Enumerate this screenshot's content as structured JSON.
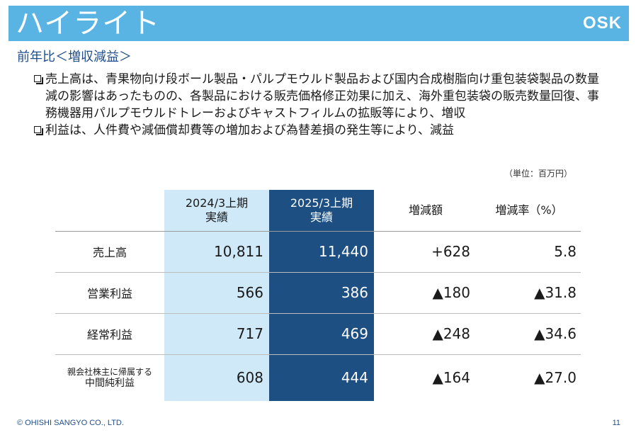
{
  "header": {
    "title": "ハイライト",
    "logo": "OSK"
  },
  "subtitle": "前年比＜増収減益＞",
  "bullets": [
    "売上高は、青果物向け段ボール製品・パルプモウルド製品および国内合成樹脂向け重包装袋製品の数量減の影響はあったものの、各製品における販売価格修正効果に加え、海外重包装袋の販売数量回復、事務機器用パルプモウルドトレーおよびキャストフィルムの拡販等により、増収",
    "利益は、人件費や減価償却費等の増加および為替差損の発生等により、減益"
  ],
  "unit_note": "（単位：百万円）",
  "table": {
    "headers": {
      "prev_line1": "2024/3上期",
      "prev_line2": "実績",
      "curr_line1": "2025/3上期",
      "curr_line2": "実績",
      "change": "増減額",
      "rate": "増減率（%）"
    },
    "rows": [
      {
        "label": "売上高",
        "prev": "10,811",
        "curr": "11,440",
        "change": "+628",
        "rate": "5.8"
      },
      {
        "label": "営業利益",
        "prev": "566",
        "curr": "386",
        "change": "▲180",
        "rate": "▲31.8"
      },
      {
        "label": "経常利益",
        "prev": "717",
        "curr": "469",
        "change": "▲248",
        "rate": "▲34.6"
      },
      {
        "label_line1": "親会社株主に帰属する",
        "label_line2": "中間純利益",
        "prev": "608",
        "curr": "444",
        "change": "▲164",
        "rate": "▲27.0"
      }
    ]
  },
  "footer": {
    "copyright": "© OHISHI SANGYO CO., LTD.",
    "page_number": "11"
  },
  "colors": {
    "header_bg": "#5ab4e3",
    "prev_column_bg": "#cfe9f8",
    "curr_column_bg": "#1d4f83",
    "accent_text": "#1f4e8c"
  }
}
